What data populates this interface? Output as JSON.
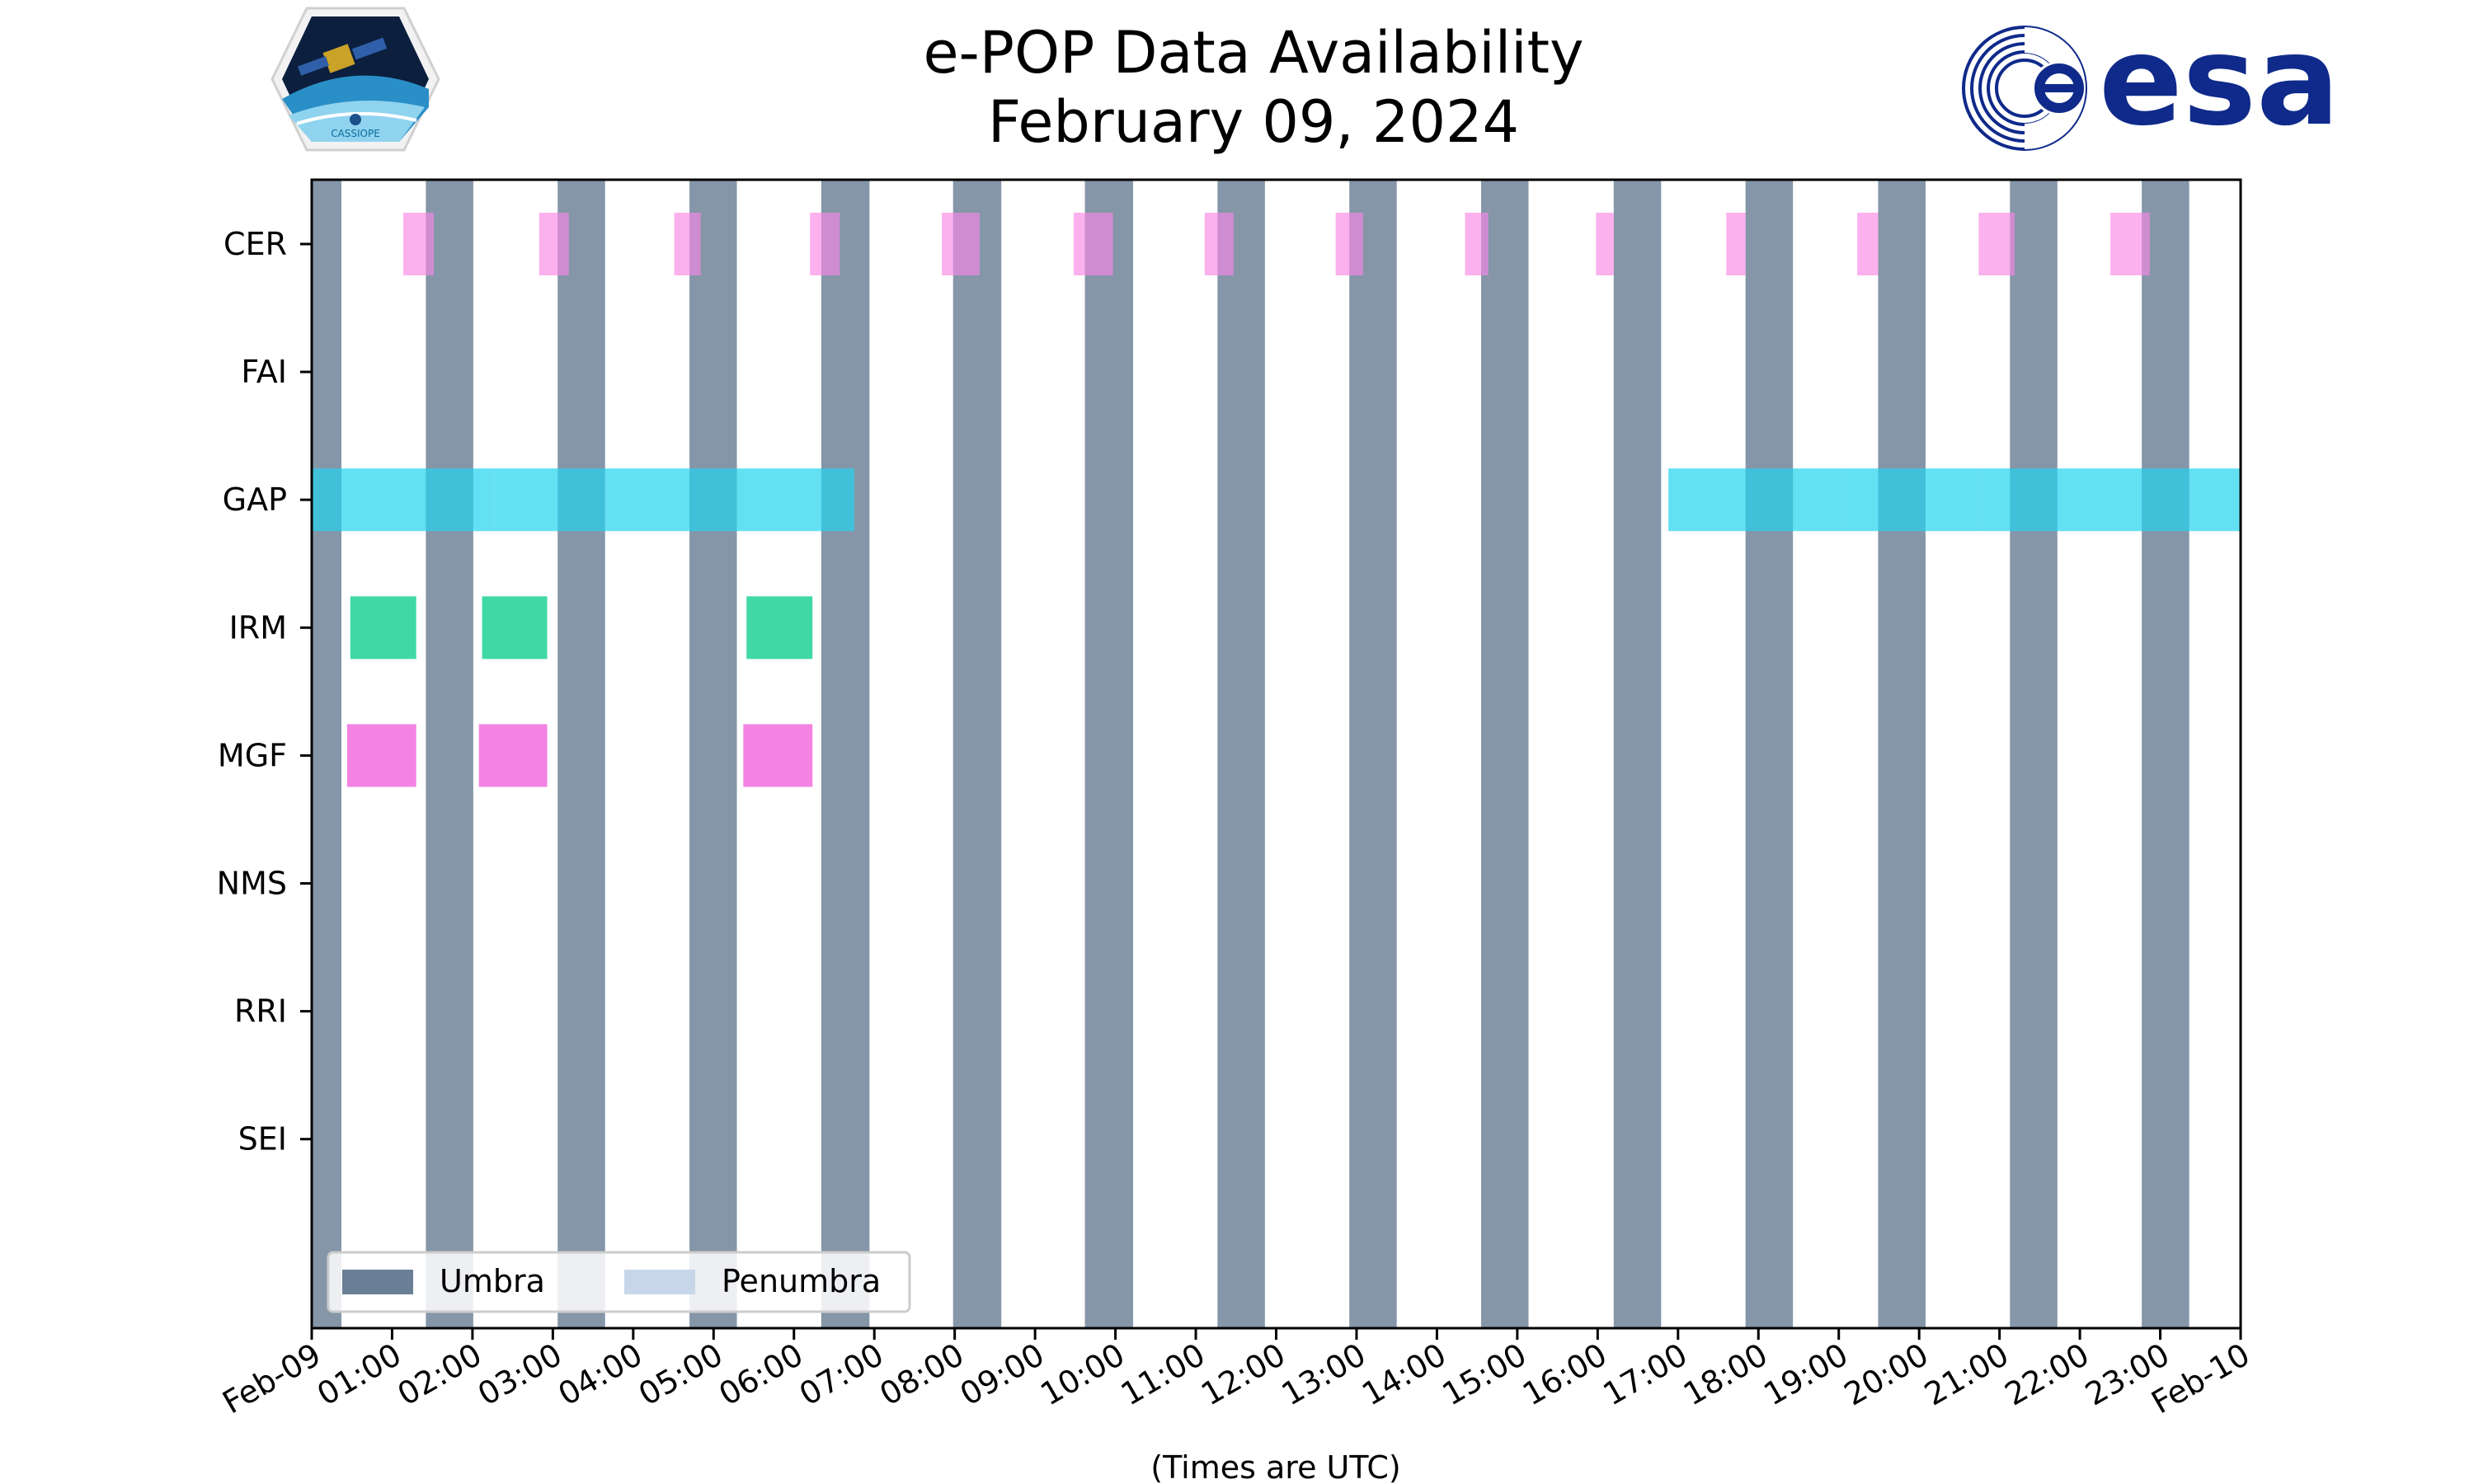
{
  "chart_data": {
    "type": "timeline",
    "title": "e-POP Data Availability",
    "subtitle": "February 09, 2024",
    "xlabel": "(Times are UTC)",
    "xlim_hours": [
      0,
      24
    ],
    "x_tick_labels": [
      "Feb-09",
      "01:00",
      "02:00",
      "03:00",
      "04:00",
      "05:00",
      "06:00",
      "07:00",
      "08:00",
      "09:00",
      "10:00",
      "11:00",
      "12:00",
      "13:00",
      "14:00",
      "15:00",
      "16:00",
      "17:00",
      "18:00",
      "19:00",
      "20:00",
      "21:00",
      "22:00",
      "23:00",
      "Feb-10"
    ],
    "instruments": [
      "CER",
      "FAI",
      "GAP",
      "IRM",
      "MGF",
      "NMS",
      "RRI",
      "SEI"
    ],
    "legend": {
      "placement": "lower-left",
      "entries": [
        {
          "label": "Umbra",
          "color": "#6a7f96"
        },
        {
          "label": "Penumbra",
          "color": "#c8d6ea"
        }
      ]
    },
    "umbra_intervals_hours": [
      [
        0.0,
        0.37
      ],
      [
        1.42,
        2.01
      ],
      [
        3.06,
        3.65
      ],
      [
        4.7,
        5.29
      ],
      [
        6.34,
        6.94
      ],
      [
        7.98,
        8.58
      ],
      [
        9.62,
        10.22
      ],
      [
        11.27,
        11.86
      ],
      [
        12.91,
        13.5
      ],
      [
        14.55,
        15.14
      ],
      [
        16.2,
        16.79
      ],
      [
        17.84,
        18.43
      ],
      [
        19.49,
        20.08
      ],
      [
        21.13,
        21.72
      ],
      [
        22.77,
        23.36
      ]
    ],
    "bars": {
      "CER": {
        "color": "#f987e5",
        "opacity": 0.65,
        "intervals_hours": [
          [
            1.14,
            1.52
          ],
          [
            2.83,
            3.2
          ],
          [
            4.51,
            4.84
          ],
          [
            6.2,
            6.57
          ],
          [
            7.84,
            8.31
          ],
          [
            9.48,
            9.97
          ],
          [
            11.11,
            11.47
          ],
          [
            12.74,
            13.08
          ],
          [
            14.35,
            14.64
          ],
          [
            15.98,
            16.2
          ],
          [
            17.6,
            17.84
          ],
          [
            19.23,
            19.49
          ],
          [
            20.74,
            21.19
          ],
          [
            22.38,
            22.87
          ]
        ]
      },
      "GAP": {
        "color": "#22d3ee",
        "opacity": 0.7,
        "intervals_hours": [
          [
            0.0,
            2.27
          ],
          [
            2.27,
            6.75
          ],
          [
            16.88,
            19.06
          ],
          [
            19.06,
            20.74
          ],
          [
            20.74,
            24.0
          ]
        ]
      },
      "IRM": {
        "color": "#00cc88",
        "opacity": 0.75,
        "intervals_hours": [
          [
            0.48,
            1.3
          ],
          [
            2.12,
            2.93
          ],
          [
            5.41,
            6.23
          ]
        ]
      },
      "MGF": {
        "color": "#ee3fd4",
        "opacity": 0.65,
        "intervals_hours": [
          [
            0.44,
            1.3
          ],
          [
            2.08,
            2.93
          ],
          [
            5.37,
            6.23
          ]
        ]
      }
    }
  },
  "logos": {
    "cassiope_text": "CASSIOPE",
    "esa_text": "esa"
  }
}
